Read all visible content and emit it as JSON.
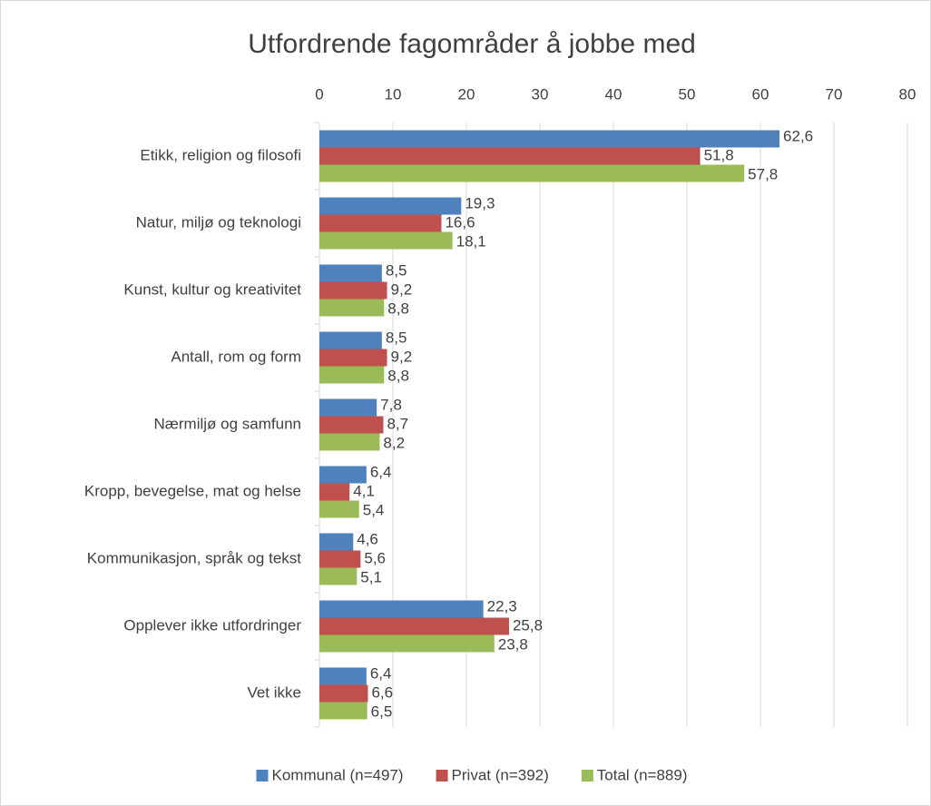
{
  "chart_data": {
    "type": "barh",
    "title": "Utfordrende fagområder å jobbe med",
    "categories": [
      "Etikk, religion og filosofi",
      "Natur, miljø og teknologi",
      "Kunst, kultur og kreativitet",
      "Antall, rom og form",
      "Nærmiljø og samfunn",
      "Kropp, bevegelse, mat og helse",
      "Kommunikasjon, språk og tekst",
      "Opplever ikke utfordringer",
      "Vet ikke"
    ],
    "series": [
      {
        "name": "Kommunal (n=497)",
        "color": "#4f81bd",
        "values": [
          62.6,
          19.3,
          8.5,
          8.5,
          7.8,
          6.4,
          4.6,
          22.3,
          6.4
        ],
        "value_labels": [
          "62,6",
          "19,3",
          "8,5",
          "8,5",
          "7,8",
          "6,4",
          "4,6",
          "22,3",
          "6,4"
        ]
      },
      {
        "name": "Privat (n=392)",
        "color": "#c0504d",
        "values": [
          51.8,
          16.6,
          9.2,
          9.2,
          8.7,
          4.1,
          5.6,
          25.8,
          6.6
        ],
        "value_labels": [
          "51,8",
          "16,6",
          "9,2",
          "9,2",
          "8,7",
          "4,1",
          "5,6",
          "25,8",
          "6,6"
        ]
      },
      {
        "name": "Total (n=889)",
        "color": "#9bbb59",
        "values": [
          57.8,
          18.1,
          8.8,
          8.8,
          8.2,
          5.4,
          5.1,
          23.8,
          6.5
        ],
        "value_labels": [
          "57,8",
          "18,1",
          "8,8",
          "8,8",
          "8,2",
          "5,4",
          "5,1",
          "23,8",
          "6,5"
        ]
      }
    ],
    "xlim": [
      0,
      80
    ],
    "xticks": [
      0,
      10,
      20,
      30,
      40,
      50,
      60,
      70,
      80
    ],
    "grid": true,
    "legend": "bottom"
  }
}
